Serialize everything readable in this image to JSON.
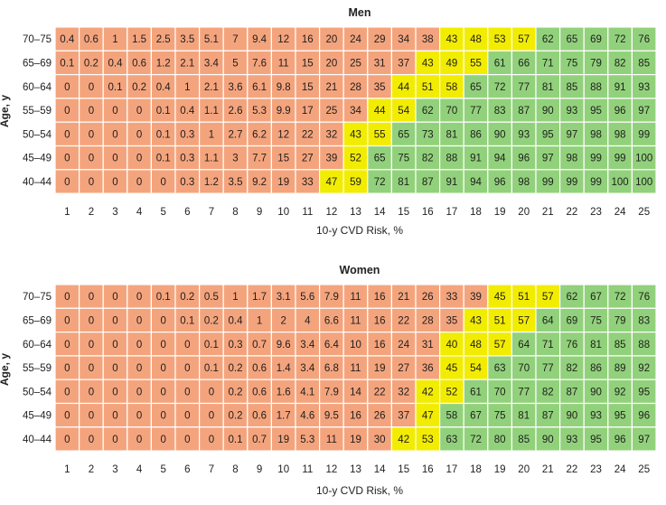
{
  "colors": {
    "low": "#f4a47d",
    "mid": "#f2ec00",
    "high": "#92d17b",
    "grid": "#ffffff",
    "text": "#222222"
  },
  "chart_data": [
    {
      "type": "heatmap",
      "title": "Men",
      "xlabel": "10-y CVD Risk, %",
      "ylabel": "Age, y",
      "x": [
        1,
        2,
        3,
        4,
        5,
        6,
        7,
        8,
        9,
        10,
        11,
        12,
        13,
        14,
        15,
        16,
        17,
        18,
        19,
        20,
        21,
        22,
        23,
        24,
        25
      ],
      "y": [
        "70–75",
        "65–69",
        "60–64",
        "55–59",
        "50–54",
        "45–49",
        "40–44"
      ],
      "values": [
        [
          "0.4",
          "0.6",
          "1",
          "1.5",
          "2.5",
          "3.5",
          "5.1",
          "7",
          "9.4",
          "12",
          "16",
          "20",
          "24",
          "29",
          "34",
          "38",
          "43",
          "48",
          "53",
          "57",
          "62",
          "65",
          "69",
          "72",
          "76"
        ],
        [
          "0.1",
          "0.2",
          "0.4",
          "0.6",
          "1.2",
          "2.1",
          "3.4",
          "5",
          "7.6",
          "11",
          "15",
          "20",
          "25",
          "31",
          "37",
          "43",
          "49",
          "55",
          "61",
          "66",
          "71",
          "75",
          "79",
          "82",
          "85"
        ],
        [
          "0",
          "0",
          "0.1",
          "0.2",
          "0.4",
          "1",
          "2.1",
          "3.6",
          "6.1",
          "9.8",
          "15",
          "21",
          "28",
          "35",
          "44",
          "51",
          "58",
          "65",
          "72",
          "77",
          "81",
          "85",
          "88",
          "91",
          "93"
        ],
        [
          "0",
          "0",
          "0",
          "0",
          "0.1",
          "0.4",
          "1.1",
          "2.6",
          "5.3",
          "9.9",
          "17",
          "25",
          "34",
          "44",
          "54",
          "62",
          "70",
          "77",
          "83",
          "87",
          "90",
          "93",
          "95",
          "96",
          "97"
        ],
        [
          "0",
          "0",
          "0",
          "0",
          "0.1",
          "0.3",
          "1",
          "2.7",
          "6.2",
          "12",
          "22",
          "32",
          "43",
          "55",
          "65",
          "73",
          "81",
          "86",
          "90",
          "93",
          "95",
          "97",
          "98",
          "98",
          "99"
        ],
        [
          "0",
          "0",
          "0",
          "0",
          "0.1",
          "0.3",
          "1.1",
          "3",
          "7.7",
          "15",
          "27",
          "39",
          "52",
          "65",
          "75",
          "82",
          "88",
          "91",
          "94",
          "96",
          "97",
          "98",
          "99",
          "99",
          "100"
        ],
        [
          "0",
          "0",
          "0",
          "0",
          "0",
          "0.3",
          "1.2",
          "3.5",
          "9.2",
          "19",
          "33",
          "47",
          "59",
          "72",
          "81",
          "87",
          "91",
          "94",
          "96",
          "98",
          "99",
          "99",
          "99",
          "100",
          "100"
        ]
      ],
      "color_classes": [
        "LLLLLLLLLLLLLLLLMMMMLLLLL",
        "LLLLLLLLLLLLLLLMMMLLLLLLL",
        "LLLLLLLLLLLLLLMMMLLLLLLLL",
        "LLLLLLLLLLLLLMMLLLLLLLLLL",
        "LLLLLLLLLLLLMMLLLLLLLLLLL",
        "LLLLLLLLLLLLMLLLLLLLLLLLL",
        "LLLLLLLLLLLMMLLLLLLLLLLLL"
      ]
    },
    {
      "type": "heatmap",
      "title": "Women",
      "xlabel": "10-y CVD Risk, %",
      "ylabel": "Age, y",
      "x": [
        1,
        2,
        3,
        4,
        5,
        6,
        7,
        8,
        9,
        10,
        11,
        12,
        13,
        14,
        15,
        16,
        17,
        18,
        19,
        20,
        21,
        22,
        23,
        24,
        25
      ],
      "y": [
        "70–75",
        "65–69",
        "60–64",
        "55–59",
        "50–54",
        "45–49",
        "40–44"
      ],
      "values": [
        [
          "0",
          "0",
          "0",
          "0",
          "0.1",
          "0.2",
          "0.5",
          "1",
          "1.7",
          "3.1",
          "5.6",
          "7.9",
          "11",
          "16",
          "21",
          "26",
          "33",
          "39",
          "45",
          "51",
          "57",
          "62",
          "67",
          "72",
          "76"
        ],
        [
          "0",
          "0",
          "0",
          "0",
          "0",
          "0.1",
          "0.2",
          "0.4",
          "1",
          "2",
          "4",
          "6.6",
          "11",
          "16",
          "22",
          "28",
          "35",
          "43",
          "51",
          "57",
          "64",
          "69",
          "75",
          "79",
          "83"
        ],
        [
          "0",
          "0",
          "0",
          "0",
          "0",
          "0",
          "0.1",
          "0.3",
          "0.7",
          "9.6",
          "3.4",
          "6.4",
          "10",
          "16",
          "24",
          "31",
          "40",
          "48",
          "57",
          "64",
          "71",
          "76",
          "81",
          "85",
          "88"
        ],
        [
          "0",
          "0",
          "0",
          "0",
          "0",
          "0",
          "0.1",
          "0.2",
          "0.6",
          "1.4",
          "3.4",
          "6.8",
          "11",
          "19",
          "27",
          "36",
          "45",
          "54",
          "63",
          "70",
          "77",
          "82",
          "86",
          "89",
          "92"
        ],
        [
          "0",
          "0",
          "0",
          "0",
          "0",
          "0",
          "0",
          "0.2",
          "0.6",
          "1.6",
          "4.1",
          "7.9",
          "14",
          "22",
          "32",
          "42",
          "52",
          "61",
          "70",
          "77",
          "82",
          "87",
          "90",
          "92",
          "95"
        ],
        [
          "0",
          "0",
          "0",
          "0",
          "0",
          "0",
          "0",
          "0.2",
          "0.6",
          "1.7",
          "4.6",
          "9.5",
          "16",
          "26",
          "37",
          "47",
          "58",
          "67",
          "75",
          "81",
          "87",
          "90",
          "93",
          "95",
          "96"
        ],
        [
          "0",
          "0",
          "0",
          "0",
          "0",
          "0",
          "0",
          "0.1",
          "0.7",
          "19",
          "5.3",
          "11",
          "19",
          "30",
          "42",
          "53",
          "63",
          "72",
          "80",
          "85",
          "90",
          "93",
          "95",
          "96",
          "97"
        ]
      ],
      "color_classes": [
        "LLLLLLLLLLLLLLLLLLMMMLLLL",
        "LLLLLLLLLLLLLLLLLMMMLLLLL",
        "LLLLLLLLLLLLLLLLMMMLLLLLL",
        "LLLLLLLLLLLLLLLLMMLLLLLLL",
        "LLLLLLLLLLLLLLLMMLLLLLLLL",
        "LLLLLLLLLLLLLLLMLLLLLLLLL",
        "LLLLLLLLLLLLLLMMLLLLLLLLL"
      ]
    }
  ]
}
